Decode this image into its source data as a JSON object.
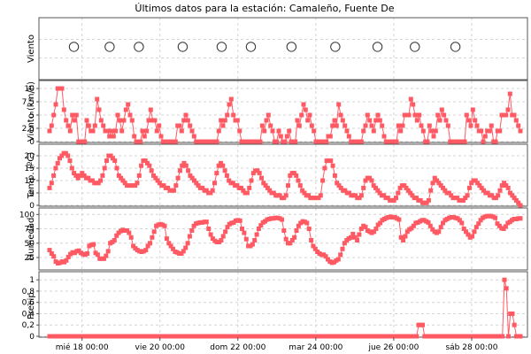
{
  "chart_data": {
    "type": "line",
    "title": "Últimos datos para la estación: Camaleño, Fuente De",
    "series_color": "#ff5a64",
    "grid": true,
    "x_axis": {
      "type": "time",
      "unit": "hours",
      "range": [
        -20,
        270
      ],
      "ticks": [
        {
          "label": "mié 18 00:00",
          "hour": 0
        },
        {
          "label": "vie 20 00:00",
          "hour": 48
        },
        {
          "label": "dom 22 00:00",
          "hour": 96
        },
        {
          "label": "mar 24 00:00",
          "hour": 144
        },
        {
          "label": "jue 26 00:00",
          "hour": 192
        },
        {
          "label": "sáb 28 00:00",
          "hour": 240
        }
      ]
    },
    "panels": [
      {
        "id": "viento-dir",
        "ylabel": "Viento",
        "kind": "circles",
        "x": [
          -5,
          17,
          35,
          62,
          86,
          104,
          129,
          156,
          182,
          205,
          230
        ]
      },
      {
        "id": "viento",
        "ylabel": "Viento (km/h)",
        "kind": "line",
        "ylim": [
          0,
          10.5
        ],
        "yticks": [
          {
            "v": 0,
            "t": "0"
          },
          {
            "v": 2.5,
            "t": "2,5"
          },
          {
            "v": 5,
            "t": "5"
          },
          {
            "v": 7.5,
            "t": "7,5"
          },
          {
            "v": 10,
            "t": "10"
          }
        ],
        "y": [
          2,
          3,
          5,
          7,
          10,
          10,
          10,
          6,
          4,
          3,
          2,
          5,
          4,
          5,
          0,
          0,
          0,
          0,
          4,
          3,
          2,
          2,
          3,
          8,
          6,
          4,
          3,
          2,
          2,
          1,
          2,
          1,
          2,
          5,
          4,
          2,
          4,
          6,
          7,
          5,
          4,
          1,
          0,
          0,
          0,
          2,
          1,
          2,
          4,
          6,
          4,
          4,
          2,
          3,
          1,
          0,
          0,
          0,
          0,
          0,
          0,
          0,
          3,
          3,
          2,
          4,
          5,
          4,
          3,
          2,
          1,
          0,
          0,
          0,
          0,
          0,
          0,
          0,
          0,
          0,
          0,
          0,
          2,
          4,
          3,
          4,
          5,
          7,
          8,
          5,
          4,
          4,
          2,
          0,
          0,
          0,
          0,
          0,
          0,
          0,
          0,
          0,
          0,
          3,
          2,
          4,
          5,
          3,
          2,
          0,
          0,
          2,
          1,
          0,
          0,
          1,
          2,
          0,
          0,
          0,
          4,
          3,
          5,
          7,
          6,
          4,
          5,
          3,
          2,
          0,
          0,
          0,
          0,
          0,
          0,
          1,
          1,
          3,
          4,
          3,
          7,
          5,
          4,
          3,
          2,
          1,
          0,
          0,
          0,
          0,
          0,
          0,
          2,
          3,
          5,
          4,
          3,
          2,
          4,
          5,
          4,
          3,
          1,
          0,
          0,
          0,
          0,
          0,
          0,
          3,
          2,
          3,
          5,
          5,
          5,
          8,
          7,
          5,
          4,
          5,
          3,
          2,
          0,
          0,
          3,
          2,
          1,
          2,
          5,
          4,
          6,
          5,
          4,
          3,
          0,
          0,
          0,
          0,
          0,
          0,
          0,
          0,
          5,
          4,
          3,
          6,
          4,
          3,
          2,
          2,
          0,
          1,
          2,
          2,
          3,
          0,
          0,
          2,
          2,
          5,
          5,
          5,
          6,
          9,
          5,
          5,
          4,
          3,
          2
        ]
      },
      {
        "id": "temp",
        "ylabel": "Temp. (ºC)",
        "kind": "line",
        "ylim": [
          0,
          22.5
        ],
        "yticks": [
          {
            "v": 0,
            "t": "0"
          },
          {
            "v": 5,
            "t": "5"
          },
          {
            "v": 10,
            "t": "10"
          },
          {
            "v": 15,
            "t": "15"
          },
          {
            "v": 20,
            "t": "20"
          }
        ],
        "y": [
          7,
          9,
          12,
          15,
          17,
          19,
          20,
          21,
          21,
          20,
          18,
          15,
          13,
          12,
          11,
          12,
          13,
          12,
          11,
          11,
          10,
          10,
          9,
          9,
          9,
          10,
          12,
          15,
          18,
          20,
          20,
          19,
          18,
          15,
          12,
          11,
          10,
          9,
          8,
          8,
          8,
          8,
          8,
          9,
          12,
          16,
          18,
          18,
          17,
          16,
          14,
          12,
          11,
          10,
          9,
          8,
          8,
          7,
          7,
          6,
          6,
          6,
          8,
          11,
          14,
          16,
          17,
          16,
          14,
          12,
          11,
          10,
          9,
          8,
          7,
          7,
          6,
          6,
          5,
          5,
          6,
          9,
          13,
          16,
          17,
          16,
          14,
          12,
          10,
          9,
          9,
          8,
          8,
          7,
          7,
          6,
          5,
          5,
          7,
          10,
          13,
          14,
          14,
          13,
          11,
          9,
          8,
          7,
          6,
          5,
          5,
          4,
          4,
          4,
          3,
          3,
          4,
          8,
          12,
          13,
          13,
          12,
          10,
          8,
          6,
          5,
          4,
          4,
          3,
          3,
          3,
          3,
          3,
          4,
          10,
          15,
          18,
          18,
          18,
          16,
          12,
          9,
          8,
          7,
          6,
          6,
          5,
          5,
          4,
          4,
          4,
          3,
          3,
          4,
          7,
          10,
          11,
          11,
          10,
          8,
          7,
          6,
          5,
          4,
          4,
          3,
          3,
          2,
          2,
          2,
          3,
          5,
          7,
          8,
          8,
          7,
          6,
          5,
          4,
          3,
          3,
          2,
          2,
          1,
          1,
          1,
          2,
          6,
          9,
          11,
          10,
          9,
          8,
          7,
          6,
          5,
          5,
          4,
          3,
          3,
          3,
          2,
          2,
          2,
          3,
          4,
          7,
          9,
          10,
          10,
          9,
          8,
          7,
          6,
          5,
          5,
          4,
          4,
          3,
          3,
          4,
          6,
          8,
          9,
          8,
          7,
          5,
          4,
          3,
          2,
          1,
          0
        ]
      },
      {
        "id": "humedad",
        "ylabel": "Humedad",
        "kind": "line",
        "ylim": [
          5,
          102
        ],
        "yticks": [
          {
            "v": 25,
            "t": "25"
          },
          {
            "v": 50,
            "t": "50"
          },
          {
            "v": 75,
            "t": "75"
          },
          {
            "v": 100,
            "t": "100"
          }
        ],
        "y": [
          38,
          32,
          27,
          18,
          15,
          16,
          18,
          17,
          20,
          26,
          31,
          34,
          33,
          36,
          37,
          33,
          31,
          30,
          32,
          45,
          47,
          48,
          33,
          30,
          23,
          23,
          23,
          28,
          36,
          50,
          52,
          55,
          63,
          68,
          71,
          73,
          72,
          72,
          68,
          60,
          45,
          41,
          38,
          36,
          35,
          36,
          38,
          45,
          50,
          60,
          70,
          80,
          82,
          83,
          82,
          80,
          58,
          50,
          45,
          40,
          35,
          34,
          32,
          32,
          36,
          42,
          50,
          62,
          72,
          80,
          84,
          85,
          86,
          86,
          87,
          87,
          75,
          65,
          58,
          54,
          52,
          52,
          55,
          62,
          70,
          78,
          83,
          85,
          86,
          89,
          90,
          89,
          75,
          68,
          57,
          45,
          45,
          48,
          55,
          65,
          75,
          81,
          86,
          88,
          91,
          92,
          93,
          93,
          94,
          94,
          93,
          91,
          72,
          57,
          50,
          50,
          55,
          60,
          72,
          80,
          85,
          88,
          87,
          85,
          75,
          55,
          45,
          40,
          35,
          32,
          30,
          30,
          27,
          22,
          18,
          16,
          17,
          20,
          22,
          30,
          40,
          50,
          55,
          58,
          60,
          66,
          60,
          55,
          65,
          75,
          80,
          78,
          72,
          70,
          68,
          70,
          75,
          82,
          85,
          90,
          92,
          94,
          95,
          96,
          95,
          95,
          93,
          91,
          60,
          55,
          62,
          70,
          74,
          76,
          80,
          85,
          86,
          88,
          90,
          90,
          88,
          86,
          80,
          74,
          70,
          68,
          70,
          78,
          85,
          90,
          92,
          94,
          95,
          95,
          94,
          93,
          90,
          85,
          75,
          70,
          65,
          60,
          62,
          70,
          78,
          84,
          90,
          94,
          96,
          97,
          97,
          97,
          96,
          94,
          84,
          80,
          76,
          75,
          79,
          85,
          87,
          90,
          92,
          92,
          93,
          93
        ]
      },
      {
        "id": "precip",
        "ylabel": "Precip.",
        "kind": "line",
        "ylim": [
          0,
          1.05
        ],
        "yticks": [
          {
            "v": 0,
            "t": "0"
          },
          {
            "v": 0.2,
            "t": "0,2"
          },
          {
            "v": 0.4,
            "t": "0,4"
          },
          {
            "v": 0.6,
            "t": "0,6"
          },
          {
            "v": 0.8,
            "t": "0,8"
          },
          {
            "v": 1,
            "t": "1"
          }
        ],
        "y": [
          0,
          0,
          0,
          0,
          0,
          0,
          0,
          0,
          0,
          0,
          0,
          0,
          0,
          0,
          0,
          0,
          0,
          0,
          0,
          0,
          0,
          0,
          0,
          0,
          0,
          0,
          0,
          0,
          0,
          0,
          0,
          0,
          0,
          0,
          0,
          0,
          0,
          0,
          0,
          0,
          0,
          0,
          0,
          0,
          0,
          0,
          0,
          0,
          0,
          0,
          0,
          0,
          0,
          0,
          0,
          0,
          0,
          0,
          0,
          0,
          0,
          0,
          0,
          0,
          0,
          0,
          0,
          0,
          0,
          0,
          0,
          0,
          0,
          0,
          0,
          0,
          0,
          0,
          0,
          0,
          0,
          0,
          0,
          0,
          0,
          0,
          0,
          0,
          0,
          0,
          0,
          0,
          0,
          0,
          0,
          0,
          0,
          0,
          0,
          0,
          0,
          0,
          0,
          0,
          0,
          0,
          0,
          0,
          0,
          0,
          0,
          0,
          0,
          0,
          0,
          0,
          0,
          0,
          0,
          0,
          0,
          0,
          0,
          0,
          0,
          0,
          0,
          0,
          0,
          0,
          0,
          0,
          0,
          0,
          0,
          0,
          0,
          0,
          0,
          0,
          0,
          0,
          0,
          0,
          0,
          0,
          0,
          0,
          0,
          0,
          0,
          0,
          0,
          0,
          0,
          0,
          0,
          0,
          0,
          0,
          0,
          0,
          0,
          0,
          0,
          0,
          0,
          0,
          0,
          0,
          0,
          0,
          0,
          0,
          0,
          0,
          0,
          0,
          0,
          0,
          0,
          0,
          0,
          0,
          0,
          0.2,
          0.2,
          0.2,
          0,
          0,
          0,
          0,
          0,
          0,
          0,
          0,
          0,
          0,
          0,
          0,
          0,
          0,
          0,
          0,
          0,
          0,
          0,
          0,
          0,
          0,
          0,
          0,
          0,
          0,
          0,
          0,
          0,
          0,
          0,
          0,
          0,
          0,
          0,
          0,
          0,
          0,
          0,
          0,
          1,
          0.85,
          0,
          0.4,
          0.4,
          0.2,
          0,
          0,
          0
        ]
      }
    ]
  }
}
